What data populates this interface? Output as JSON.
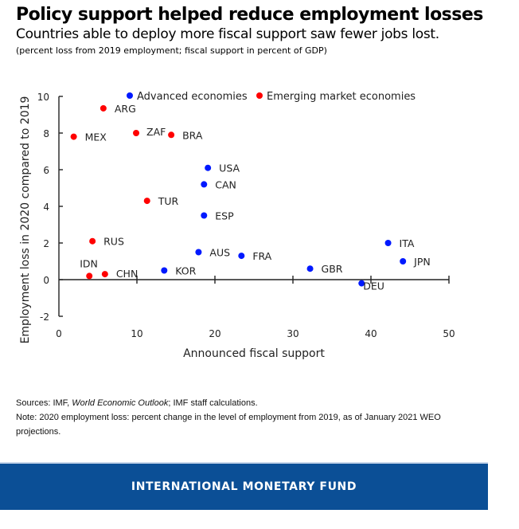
{
  "header": {
    "title": "Policy support helped reduce employment losses",
    "subtitle": "Countries able to deploy more fiscal support saw fewer jobs lost.",
    "units": "(percent loss from 2019 employment; fiscal support in percent of GDP)"
  },
  "chart_data": {
    "type": "scatter",
    "xlabel": "Announced fiscal support",
    "ylabel": "Employment loss in 2020 compared to 2019",
    "xlim": [
      0,
      50
    ],
    "ylim": [
      -2,
      10
    ],
    "xticks": [
      "0",
      "10",
      "20",
      "30",
      "40",
      "50"
    ],
    "yticks": [
      "-2",
      "0",
      "2",
      "4",
      "6",
      "8",
      "10"
    ],
    "grid": false,
    "legend_position": "top",
    "series": [
      {
        "name": "Advanced economies",
        "color": "#0019ff",
        "points": [
          {
            "label": "USA",
            "x": 19.1,
            "y": 6.1
          },
          {
            "label": "CAN",
            "x": 18.6,
            "y": 5.2
          },
          {
            "label": "ESP",
            "x": 18.6,
            "y": 3.5
          },
          {
            "label": "AUS",
            "x": 17.9,
            "y": 1.5
          },
          {
            "label": "FRA",
            "x": 23.4,
            "y": 1.3
          },
          {
            "label": "KOR",
            "x": 13.5,
            "y": 0.5
          },
          {
            "label": "GBR",
            "x": 32.2,
            "y": 0.6
          },
          {
            "label": "DEU",
            "x": 38.8,
            "y": -0.2
          },
          {
            "label": "ITA",
            "x": 42.2,
            "y": 2.0
          },
          {
            "label": "JPN",
            "x": 44.1,
            "y": 1.0
          }
        ]
      },
      {
        "name": "Emerging market economies",
        "color": "#ff0000",
        "points": [
          {
            "label": "ARG",
            "x": 5.7,
            "y": 9.35
          },
          {
            "label": "MEX",
            "x": 1.9,
            "y": 7.8
          },
          {
            "label": "ZAF",
            "x": 9.9,
            "y": 8.0
          },
          {
            "label": "BRA",
            "x": 14.4,
            "y": 7.9
          },
          {
            "label": "TUR",
            "x": 11.3,
            "y": 4.3
          },
          {
            "label": "RUS",
            "x": 4.3,
            "y": 2.1
          },
          {
            "label": "IDN",
            "x": 3.9,
            "y": 0.2
          },
          {
            "label": "CHN",
            "x": 5.9,
            "y": 0.3
          }
        ]
      }
    ]
  },
  "notes": {
    "sources_prefix": "Sources: IMF, ",
    "sources_italic": "World Economic Outlook",
    "sources_suffix": "; IMF staff calculations.",
    "note": "Note: 2020 employment loss: percent change in the level of employment from 2019, as of January 2021 WEO projections."
  },
  "footer": {
    "banner": "INTERNATIONAL MONETARY FUND"
  }
}
